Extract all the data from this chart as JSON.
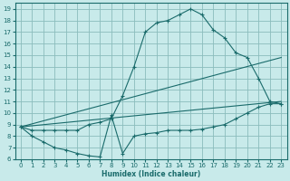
{
  "xlabel": "Humidex (Indice chaleur)",
  "bg_color": "#c8eaea",
  "grid_color": "#8bbcbc",
  "line_color": "#1a6b6b",
  "xlim": [
    -0.5,
    23.5
  ],
  "ylim": [
    6,
    19.5
  ],
  "xticks": [
    0,
    1,
    2,
    3,
    4,
    5,
    6,
    7,
    8,
    9,
    10,
    11,
    12,
    13,
    14,
    15,
    16,
    17,
    18,
    19,
    20,
    21,
    22,
    23
  ],
  "yticks": [
    6,
    7,
    8,
    9,
    10,
    11,
    12,
    13,
    14,
    15,
    16,
    17,
    18,
    19
  ],
  "curve1_x": [
    0,
    1,
    2,
    3,
    4,
    5,
    6,
    7,
    8,
    9,
    10,
    11,
    12,
    13,
    14,
    15,
    16,
    17,
    18,
    19,
    20,
    21,
    22,
    23
  ],
  "curve1_y": [
    8.8,
    8.0,
    7.5,
    7.0,
    6.8,
    6.5,
    6.3,
    6.2,
    9.8,
    6.5,
    8.0,
    8.2,
    8.3,
    8.5,
    8.5,
    8.5,
    8.6,
    8.8,
    9.0,
    9.5,
    10.0,
    10.5,
    10.8,
    10.8
  ],
  "curve2_x": [
    0,
    23
  ],
  "curve2_y": [
    8.8,
    11.0
  ],
  "curve3_x": [
    0,
    1,
    2,
    3,
    4,
    5,
    6,
    7,
    8,
    9,
    10,
    11,
    12,
    13,
    14,
    15,
    16,
    17,
    18,
    19,
    20,
    21,
    22,
    23
  ],
  "curve3_y": [
    8.8,
    8.5,
    8.5,
    8.5,
    8.5,
    8.5,
    9.0,
    9.2,
    9.5,
    11.5,
    14.0,
    17.0,
    17.8,
    18.0,
    18.5,
    19.0,
    18.5,
    17.2,
    16.5,
    15.2,
    14.8,
    13.0,
    11.0,
    10.8
  ],
  "curve4_x": [
    0,
    23
  ],
  "curve4_y": [
    8.8,
    14.8
  ]
}
